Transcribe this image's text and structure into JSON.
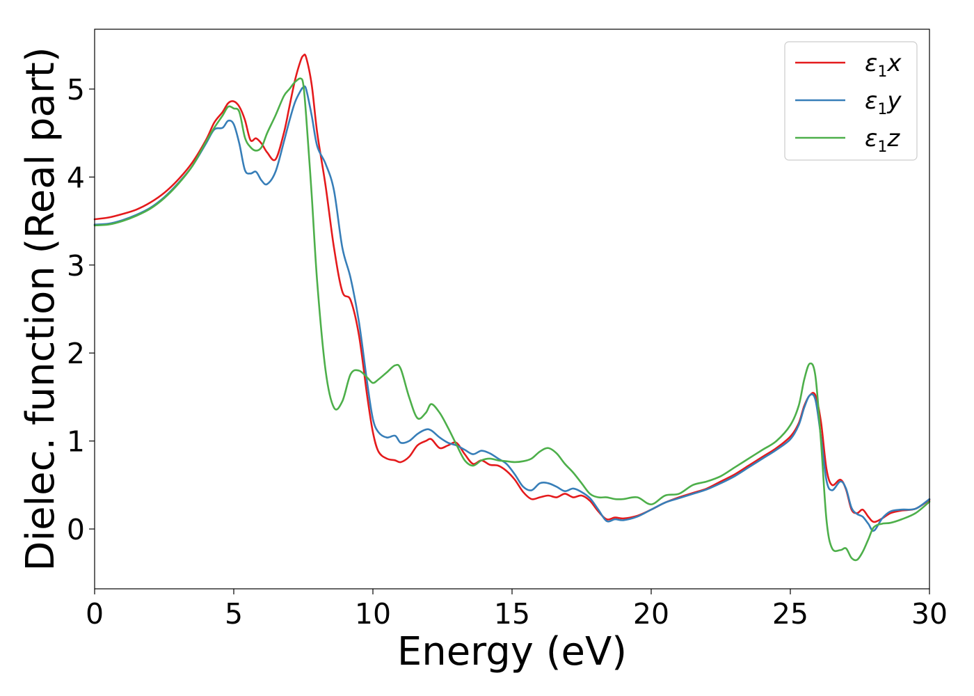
{
  "chart_data": {
    "type": "line",
    "title": "",
    "xlabel": "Energy (eV)",
    "ylabel": "Dielec. function (Real part)",
    "xlim": [
      0,
      30
    ],
    "ylim": [
      -0.68,
      5.68
    ],
    "xticks": [
      0,
      5,
      10,
      15,
      20,
      25,
      30
    ],
    "yticks": [
      0,
      1,
      2,
      3,
      4,
      5
    ],
    "grid": false,
    "legend_position": "top-right",
    "series": [
      {
        "name": "ε₁x",
        "label_base": "ε",
        "label_sub": "1",
        "label_var": "x",
        "color": "#e41a1c",
        "x": [
          0,
          0.5,
          1,
          1.5,
          2,
          2.5,
          3,
          3.5,
          4,
          4.3,
          4.6,
          4.8,
          5.0,
          5.2,
          5.4,
          5.6,
          5.8,
          6.0,
          6.2,
          6.5,
          6.8,
          7.0,
          7.2,
          7.4,
          7.5,
          7.6,
          7.8,
          8.0,
          8.3,
          8.6,
          8.9,
          9.2,
          9.5,
          9.8,
          10.0,
          10.2,
          10.5,
          10.8,
          11.0,
          11.3,
          11.6,
          11.9,
          12.1,
          12.4,
          12.7,
          13.0,
          13.3,
          13.6,
          13.9,
          14.2,
          14.5,
          14.8,
          15.1,
          15.4,
          15.7,
          16.0,
          16.3,
          16.6,
          16.9,
          17.2,
          17.5,
          17.8,
          18.1,
          18.4,
          18.7,
          19.0,
          19.5,
          20.0,
          20.5,
          21.0,
          21.5,
          22.0,
          22.5,
          23.0,
          23.5,
          24.0,
          24.5,
          25.0,
          25.3,
          25.5,
          25.7,
          25.9,
          26.1,
          26.3,
          26.5,
          26.8,
          27.0,
          27.2,
          27.4,
          27.6,
          27.8,
          28.0,
          28.3,
          28.6,
          29.0,
          29.5,
          30
        ],
        "y": [
          3.52,
          3.54,
          3.58,
          3.63,
          3.71,
          3.82,
          3.97,
          4.16,
          4.42,
          4.62,
          4.74,
          4.84,
          4.86,
          4.8,
          4.65,
          4.42,
          4.44,
          4.38,
          4.28,
          4.2,
          4.5,
          4.8,
          5.1,
          5.32,
          5.38,
          5.36,
          5.05,
          4.5,
          3.9,
          3.2,
          2.7,
          2.6,
          2.2,
          1.5,
          1.1,
          0.88,
          0.8,
          0.78,
          0.76,
          0.82,
          0.95,
          1.0,
          1.02,
          0.92,
          0.95,
          0.98,
          0.85,
          0.74,
          0.78,
          0.73,
          0.72,
          0.66,
          0.56,
          0.42,
          0.34,
          0.36,
          0.38,
          0.36,
          0.4,
          0.36,
          0.38,
          0.32,
          0.2,
          0.11,
          0.13,
          0.12,
          0.15,
          0.22,
          0.3,
          0.36,
          0.41,
          0.46,
          0.54,
          0.62,
          0.72,
          0.82,
          0.92,
          1.05,
          1.2,
          1.4,
          1.52,
          1.52,
          1.22,
          0.68,
          0.5,
          0.56,
          0.45,
          0.22,
          0.18,
          0.22,
          0.14,
          0.08,
          0.12,
          0.18,
          0.21,
          0.23,
          0.33
        ]
      },
      {
        "name": "ε₁y",
        "label_base": "ε",
        "label_sub": "1",
        "label_var": "y",
        "color": "#377eb8",
        "x": [
          0,
          0.5,
          1,
          1.5,
          2,
          2.5,
          3,
          3.5,
          4,
          4.3,
          4.6,
          4.8,
          5.0,
          5.2,
          5.4,
          5.6,
          5.8,
          6.0,
          6.2,
          6.5,
          6.8,
          7.0,
          7.2,
          7.4,
          7.5,
          7.6,
          7.8,
          8.0,
          8.3,
          8.6,
          8.9,
          9.2,
          9.5,
          9.8,
          10.0,
          10.2,
          10.5,
          10.8,
          11.0,
          11.3,
          11.6,
          11.9,
          12.1,
          12.4,
          12.7,
          13.0,
          13.3,
          13.6,
          13.9,
          14.2,
          14.5,
          14.8,
          15.1,
          15.4,
          15.7,
          16.0,
          16.3,
          16.6,
          16.9,
          17.2,
          17.5,
          17.8,
          18.1,
          18.4,
          18.7,
          19.0,
          19.5,
          20.0,
          20.5,
          21.0,
          21.5,
          22.0,
          22.5,
          23.0,
          23.5,
          24.0,
          24.5,
          25.0,
          25.3,
          25.5,
          25.7,
          25.9,
          26.1,
          26.3,
          26.5,
          26.8,
          27.0,
          27.2,
          27.4,
          27.6,
          27.8,
          28.0,
          28.3,
          28.6,
          29.0,
          29.5,
          30
        ],
        "y": [
          3.46,
          3.47,
          3.51,
          3.57,
          3.65,
          3.77,
          3.93,
          4.12,
          4.38,
          4.54,
          4.56,
          4.64,
          4.6,
          4.38,
          4.08,
          4.04,
          4.06,
          3.96,
          3.92,
          4.06,
          4.4,
          4.64,
          4.85,
          4.98,
          5.02,
          5.0,
          4.7,
          4.35,
          4.15,
          3.85,
          3.2,
          2.85,
          2.35,
          1.65,
          1.25,
          1.1,
          1.04,
          1.06,
          0.98,
          1.0,
          1.08,
          1.13,
          1.12,
          1.04,
          0.98,
          0.95,
          0.9,
          0.85,
          0.89,
          0.86,
          0.8,
          0.74,
          0.62,
          0.48,
          0.44,
          0.52,
          0.52,
          0.48,
          0.43,
          0.46,
          0.42,
          0.35,
          0.22,
          0.09,
          0.11,
          0.1,
          0.14,
          0.22,
          0.3,
          0.35,
          0.4,
          0.45,
          0.52,
          0.6,
          0.7,
          0.8,
          0.9,
          1.02,
          1.18,
          1.38,
          1.52,
          1.47,
          1.05,
          0.55,
          0.44,
          0.54,
          0.46,
          0.24,
          0.17,
          0.14,
          0.06,
          -0.02,
          0.12,
          0.2,
          0.22,
          0.23,
          0.34
        ]
      },
      {
        "name": "ε₁z",
        "label_base": "ε",
        "label_sub": "1",
        "label_var": "z",
        "color": "#4daf4a",
        "x": [
          0,
          0.5,
          1,
          1.5,
          2,
          2.5,
          3,
          3.5,
          4,
          4.3,
          4.6,
          4.8,
          5.0,
          5.2,
          5.4,
          5.6,
          5.8,
          6.0,
          6.2,
          6.5,
          6.8,
          7.0,
          7.2,
          7.4,
          7.5,
          7.6,
          7.8,
          8.0,
          8.3,
          8.6,
          8.9,
          9.2,
          9.5,
          9.8,
          10.0,
          10.2,
          10.5,
          10.8,
          11.0,
          11.3,
          11.6,
          11.9,
          12.1,
          12.4,
          12.7,
          13.0,
          13.3,
          13.6,
          13.9,
          14.2,
          14.5,
          14.8,
          15.1,
          15.4,
          15.7,
          16.0,
          16.3,
          16.6,
          16.9,
          17.2,
          17.5,
          17.8,
          18.1,
          18.4,
          18.7,
          19.0,
          19.5,
          20.0,
          20.5,
          21.0,
          21.5,
          22.0,
          22.5,
          23.0,
          23.5,
          24.0,
          24.5,
          25.0,
          25.3,
          25.5,
          25.7,
          25.9,
          26.1,
          26.3,
          26.5,
          26.8,
          27.0,
          27.2,
          27.4,
          27.6,
          27.8,
          28.0,
          28.3,
          28.6,
          29.0,
          29.5,
          30
        ],
        "y": [
          3.45,
          3.46,
          3.5,
          3.56,
          3.64,
          3.76,
          3.92,
          4.12,
          4.4,
          4.56,
          4.7,
          4.8,
          4.78,
          4.74,
          4.45,
          4.34,
          4.3,
          4.34,
          4.5,
          4.7,
          4.92,
          5.0,
          5.08,
          5.12,
          5.05,
          4.7,
          3.8,
          2.8,
          1.8,
          1.38,
          1.45,
          1.76,
          1.8,
          1.72,
          1.66,
          1.7,
          1.78,
          1.86,
          1.82,
          1.5,
          1.26,
          1.32,
          1.42,
          1.32,
          1.15,
          0.96,
          0.78,
          0.72,
          0.78,
          0.8,
          0.78,
          0.77,
          0.76,
          0.77,
          0.8,
          0.88,
          0.92,
          0.86,
          0.74,
          0.64,
          0.52,
          0.4,
          0.36,
          0.36,
          0.34,
          0.34,
          0.36,
          0.28,
          0.38,
          0.4,
          0.5,
          0.54,
          0.6,
          0.7,
          0.8,
          0.9,
          1.0,
          1.18,
          1.4,
          1.7,
          1.88,
          1.74,
          1.0,
          0.1,
          -0.22,
          -0.24,
          -0.22,
          -0.33,
          -0.35,
          -0.26,
          -0.12,
          0.02,
          0.06,
          0.07,
          0.11,
          0.18,
          0.31
        ]
      }
    ]
  }
}
